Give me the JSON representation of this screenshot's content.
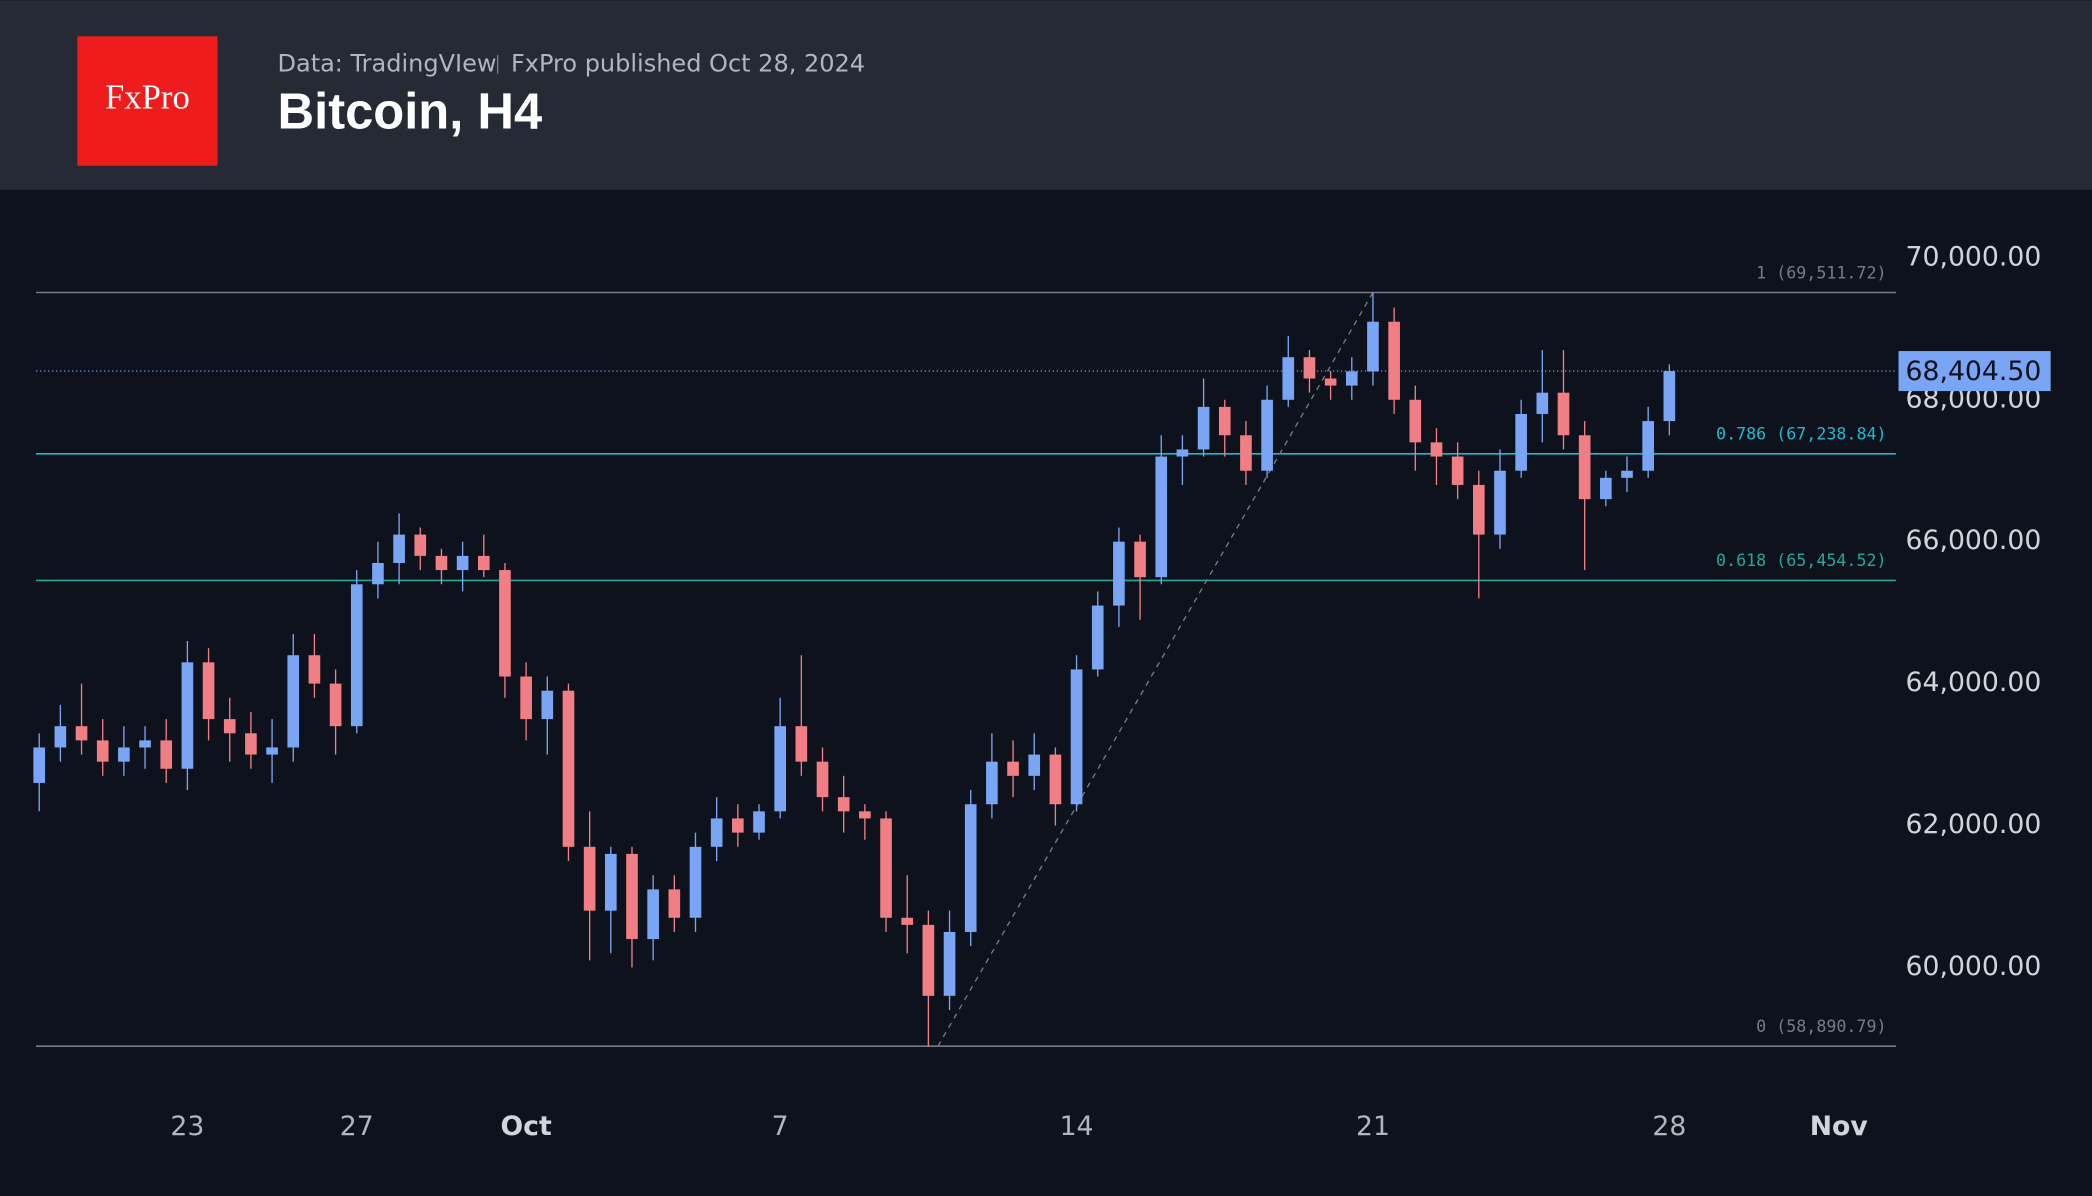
{
  "header": {
    "source": "Data: TradingVIew",
    "publisher": "FxPro published Oct 28, 2024",
    "logo": "FxPro",
    "title": "Bitcoin, H4"
  },
  "chart_data": {
    "type": "candlestick",
    "up_color": "#7aa5f5",
    "down_color": "#f07e84",
    "values": [
      [
        62600,
        63300,
        62200,
        63100
      ],
      [
        63100,
        63700,
        62900,
        63400
      ],
      [
        63400,
        64000,
        63000,
        63200
      ],
      [
        63200,
        63500,
        62700,
        62900
      ],
      [
        62900,
        63400,
        62700,
        63100
      ],
      [
        63100,
        63400,
        62800,
        63200
      ],
      [
        63200,
        63500,
        62600,
        62800
      ],
      [
        62800,
        64600,
        62500,
        64300
      ],
      [
        64300,
        64500,
        63200,
        63500
      ],
      [
        63500,
        63800,
        62900,
        63300
      ],
      [
        63300,
        63600,
        62800,
        63000
      ],
      [
        63000,
        63500,
        62600,
        63100
      ],
      [
        63100,
        64700,
        62900,
        64400
      ],
      [
        64400,
        64700,
        63800,
        64000
      ],
      [
        64000,
        64200,
        63000,
        63400
      ],
      [
        63400,
        65600,
        63300,
        65400
      ],
      [
        65400,
        66000,
        65200,
        65700
      ],
      [
        65700,
        66400,
        65400,
        66100
      ],
      [
        66100,
        66200,
        65600,
        65800
      ],
      [
        65800,
        65900,
        65400,
        65600
      ],
      [
        65600,
        66000,
        65300,
        65800
      ],
      [
        65800,
        66100,
        65500,
        65600
      ],
      [
        65600,
        65700,
        63800,
        64100
      ],
      [
        64100,
        64300,
        63200,
        63500
      ],
      [
        63500,
        64100,
        63000,
        63900
      ],
      [
        63900,
        64000,
        61500,
        61700
      ],
      [
        61700,
        62200,
        60100,
        60800
      ],
      [
        60800,
        61700,
        60200,
        61600
      ],
      [
        61600,
        61700,
        60000,
        60400
      ],
      [
        60400,
        61300,
        60100,
        61100
      ],
      [
        61100,
        61300,
        60500,
        60700
      ],
      [
        60700,
        61900,
        60500,
        61700
      ],
      [
        61700,
        62400,
        61500,
        62100
      ],
      [
        62100,
        62300,
        61700,
        61900
      ],
      [
        61900,
        62300,
        61800,
        62200
      ],
      [
        62200,
        63800,
        62100,
        63400
      ],
      [
        63400,
        64400,
        62700,
        62900
      ],
      [
        62900,
        63100,
        62200,
        62400
      ],
      [
        62400,
        62700,
        61900,
        62200
      ],
      [
        62200,
        62300,
        61800,
        62100
      ],
      [
        62100,
        62200,
        60500,
        60700
      ],
      [
        60700,
        61300,
        60200,
        60600
      ],
      [
        60600,
        60800,
        58890,
        59600
      ],
      [
        59600,
        60800,
        59400,
        60500
      ],
      [
        60500,
        62500,
        60300,
        62300
      ],
      [
        62300,
        63300,
        62100,
        62900
      ],
      [
        62900,
        63200,
        62400,
        62700
      ],
      [
        62700,
        63300,
        62500,
        63000
      ],
      [
        63000,
        63100,
        62000,
        62300
      ],
      [
        62300,
        64400,
        62200,
        64200
      ],
      [
        64200,
        65300,
        64100,
        65100
      ],
      [
        65100,
        66200,
        64800,
        66000
      ],
      [
        66000,
        66100,
        64900,
        65500
      ],
      [
        65500,
        67500,
        65400,
        67200
      ],
      [
        67200,
        67500,
        66800,
        67300
      ],
      [
        67300,
        68300,
        67200,
        67900
      ],
      [
        67900,
        68000,
        67200,
        67500
      ],
      [
        67500,
        67700,
        66800,
        67000
      ],
      [
        67000,
        68200,
        66900,
        68000
      ],
      [
        68000,
        68900,
        67900,
        68600
      ],
      [
        68600,
        68700,
        68100,
        68300
      ],
      [
        68300,
        68400,
        68000,
        68200
      ],
      [
        68200,
        68600,
        68000,
        68400
      ],
      [
        68400,
        69512,
        68200,
        69100
      ],
      [
        69100,
        69300,
        67800,
        68000
      ],
      [
        68000,
        68200,
        67000,
        67400
      ],
      [
        67400,
        67600,
        66800,
        67200
      ],
      [
        67200,
        67400,
        66600,
        66800
      ],
      [
        66800,
        67000,
        65200,
        66100
      ],
      [
        66100,
        67300,
        65900,
        67000
      ],
      [
        67000,
        68000,
        66900,
        67800
      ],
      [
        67800,
        68700,
        67400,
        68100
      ],
      [
        68100,
        68700,
        67300,
        67500
      ],
      [
        67500,
        67700,
        65600,
        66600
      ],
      [
        66600,
        67000,
        66500,
        66900
      ],
      [
        66900,
        67200,
        66700,
        67000
      ],
      [
        67000,
        67900,
        66900,
        67700
      ],
      [
        67700,
        68500,
        67500,
        68404.5
      ]
    ],
    "xlim": [
      -0.15,
      87.7
    ],
    "xticks": [
      {
        "value": 7,
        "label": "23"
      },
      {
        "value": 15,
        "label": "27"
      },
      {
        "value": 23,
        "label": "Oct"
      },
      {
        "value": 35,
        "label": "7"
      },
      {
        "value": 49,
        "label": "14"
      },
      {
        "value": 63,
        "label": "21"
      },
      {
        "value": 77,
        "label": "28"
      },
      {
        "value": 85,
        "label": "Nov"
      }
    ],
    "ylim": [
      58400,
      70960
    ],
    "yticks": [
      {
        "value": 60000,
        "label": "60,000.00"
      },
      {
        "value": 62000,
        "label": "62,000.00"
      },
      {
        "value": 64000,
        "label": "64,000.00"
      },
      {
        "value": 66000,
        "label": "66,000.00"
      },
      {
        "value": 68000,
        "label": "68,000.00"
      },
      {
        "value": 70000,
        "label": "70,000.00"
      }
    ],
    "last_price": {
      "value": 68404.5,
      "label": "68,404.50",
      "color": "#7aa5f5"
    },
    "fib_levels": [
      {
        "value": 69511.72,
        "label": "1 (69,511.72)",
        "color": "#787b86"
      },
      {
        "value": 67238.84,
        "label": "0.786 (67,238.84)",
        "color": "#22b8cf"
      },
      {
        "value": 65454.52,
        "label": "0.618 (65,454.52)",
        "color": "#26a69a"
      },
      {
        "value": 58890.79,
        "label": "0 (58,890.79)",
        "color": "#787b86"
      }
    ]
  }
}
